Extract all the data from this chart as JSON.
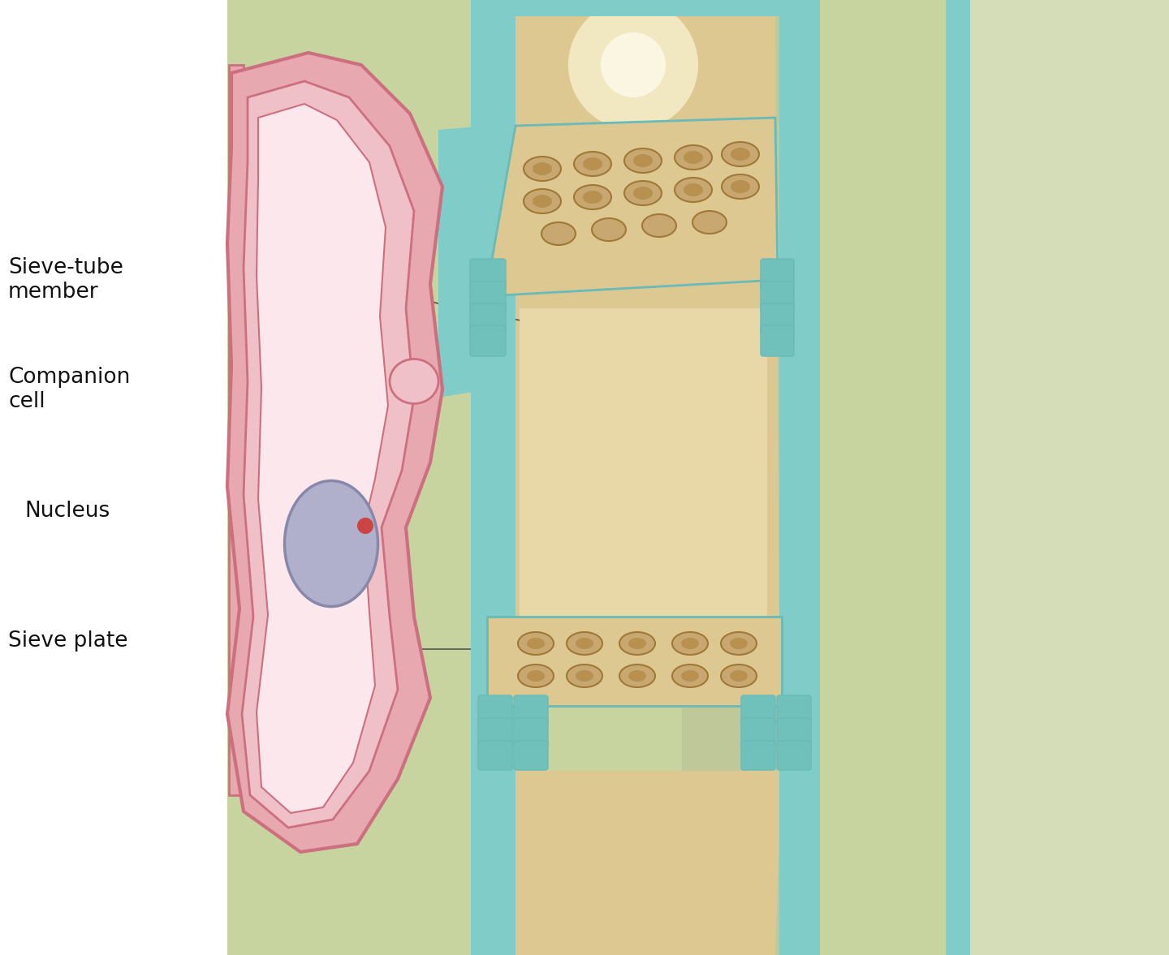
{
  "background_color": "#ffffff",
  "fig_width": 14.4,
  "fig_height": 11.77,
  "labels": {
    "sieve_tube": "Sieve-tube\nmember",
    "companion": "Companion\ncell",
    "nucleus": "Nucleus",
    "sieve_plate": "Sieve plate"
  },
  "colors": {
    "bg_light_green": "#d4ddb8",
    "bg_mid_green": "#c8d4a0",
    "bg_dark_green_strip": "#b8c890",
    "cell_wall_teal": "#80ccc8",
    "cell_wall_teal2": "#6abab8",
    "sieve_tube_tan": "#dcc890",
    "sieve_tube_tan_light": "#e8d8a8",
    "sieve_tube_glow": "#f5eecc",
    "companion_pink_outer": "#e8a8b0",
    "companion_pink_mid": "#f0c0c8",
    "companion_pink_inner": "#fce8ec",
    "companion_outline": "#cc7080",
    "nucleus_fill": "#b0b0cc",
    "nucleus_outline": "#8888aa",
    "nucleolus": "#cc4444",
    "pore_tan": "#c8a870",
    "pore_inner": "#b89050",
    "plasmo_teal": "#70c0bc",
    "line_color": "#555555",
    "text_color": "#111111",
    "white": "#ffffff"
  },
  "font_size": 19
}
